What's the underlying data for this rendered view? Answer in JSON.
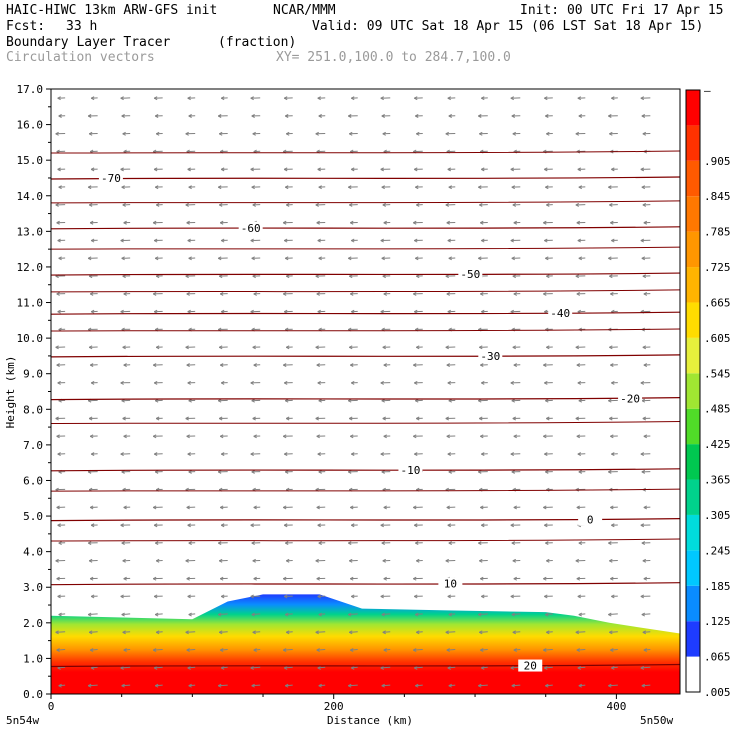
{
  "header": {
    "model_title": "HAIC-HIWC 13km ARW-GFS init",
    "org": "NCAR/MMM",
    "init": "Init: 00 UTC Fri 17 Apr 15",
    "fcst_label": "Fcst:",
    "fcst_value": "33 h",
    "valid": "Valid: 09 UTC Sat 18 Apr 15 (06 LST Sat 18 Apr 15)",
    "field_name": "Boundary Layer Tracer",
    "field_units": "(fraction)",
    "overlay_name": "Circulation vectors",
    "cross_section": "XY= 251.0,100.0 to 284.7,100.0"
  },
  "chart_data": {
    "type": "heatmap",
    "title": "Boundary Layer Tracer",
    "xlabel": "Distance (km)",
    "ylabel": "Height (km)",
    "xlim": [
      0,
      445
    ],
    "ylim": [
      0,
      17
    ],
    "x_ticks": [
      0,
      200,
      400
    ],
    "y_ticks": [
      "0.0",
      "1.0",
      "2.0",
      "3.0",
      "4.0",
      "5.0",
      "6.0",
      "7.0",
      "8.0",
      "9.0",
      "10.0",
      "11.0",
      "12.0",
      "13.0",
      "14.0",
      "15.0",
      "16.0",
      "17.0"
    ],
    "x_endpoint_left": "5n54w",
    "x_endpoint_right": "5n50w",
    "colorbar_labels": [
      ".005",
      ".065",
      ".125",
      ".185",
      ".245",
      ".305",
      ".365",
      ".425",
      ".485",
      ".545",
      ".605",
      ".665",
      ".725",
      ".785",
      ".845",
      ".905",
      "–"
    ],
    "colorbar_colors": [
      "#ffffff",
      "#1e3cff",
      "#0a8cff",
      "#00c8ff",
      "#00dcdc",
      "#00d28c",
      "#00c850",
      "#50dc28",
      "#a0e632",
      "#e6f03c",
      "#ffdc00",
      "#ffb400",
      "#ff9600",
      "#ff7800",
      "#ff5a00",
      "#ff3200",
      "#ff0000"
    ],
    "temperature_contours": [
      {
        "label": "-70",
        "height": 14.5
      },
      {
        "label": "-60",
        "height": 13.1
      },
      {
        "label": "-50",
        "height": 11.8
      },
      {
        "label": "-40",
        "height": 10.7
      },
      {
        "label": "-30",
        "height": 9.5
      },
      {
        "label": "-20",
        "height": 8.3
      },
      {
        "label": "-10",
        "height": 6.3
      },
      {
        "label": "0",
        "height": 4.9
      },
      {
        "label": "10",
        "height": 3.1
      },
      {
        "label": "20",
        "height": 0.8
      }
    ],
    "tracer_top_km": [
      [
        0,
        2.2
      ],
      [
        100,
        2.1
      ],
      [
        110,
        2.3
      ],
      [
        125,
        2.6
      ],
      [
        150,
        2.8
      ],
      [
        190,
        2.8
      ],
      [
        220,
        2.4
      ],
      [
        280,
        2.35
      ],
      [
        350,
        2.3
      ],
      [
        370,
        2.2
      ],
      [
        395,
        2.0
      ],
      [
        445,
        1.7
      ]
    ]
  }
}
